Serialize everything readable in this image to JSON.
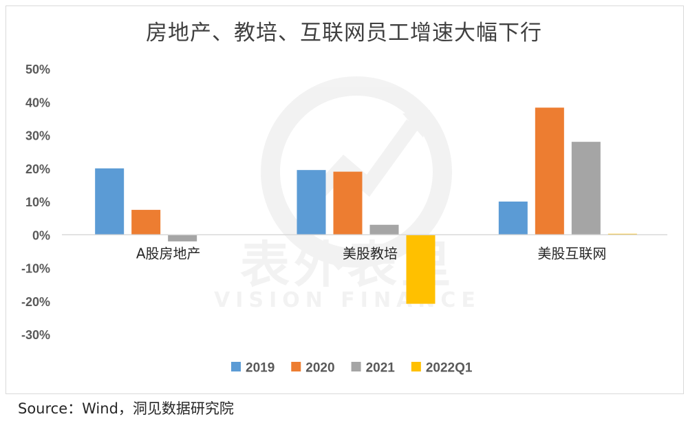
{
  "chart_data": {
    "type": "bar",
    "title": "房地产、教培、互联网员工增速大幅下行",
    "categories": [
      "A股房地产",
      "美股教培",
      "美股互联网"
    ],
    "series": [
      {
        "name": "2019",
        "values": [
          20,
          19.5,
          10
        ]
      },
      {
        "name": "2020",
        "values": [
          7.5,
          19,
          38.3
        ]
      },
      {
        "name": "2021",
        "values": [
          -2,
          3,
          28
        ]
      },
      {
        "name": "2022Q1",
        "values": [
          null,
          -20.8,
          0.3
        ]
      }
    ],
    "ylim": [
      -30,
      50
    ],
    "yticks": [
      50,
      40,
      30,
      20,
      10,
      0,
      -10,
      -20,
      -30
    ],
    "ytick_labels": [
      "50%",
      "40%",
      "30%",
      "20%",
      "10%",
      "0%",
      "-10%",
      "-20%",
      "-30%"
    ],
    "xlabel": "",
    "ylabel": "",
    "grid": false,
    "legend_position": "bottom",
    "colors": [
      "#5b9bd5",
      "#ed7d31",
      "#a5a5a5",
      "#ffc000"
    ]
  },
  "watermark": {
    "cn": "表外表里",
    "en": "VISION FINANCE"
  },
  "source": "Source：Wind，洞见数据研究院"
}
